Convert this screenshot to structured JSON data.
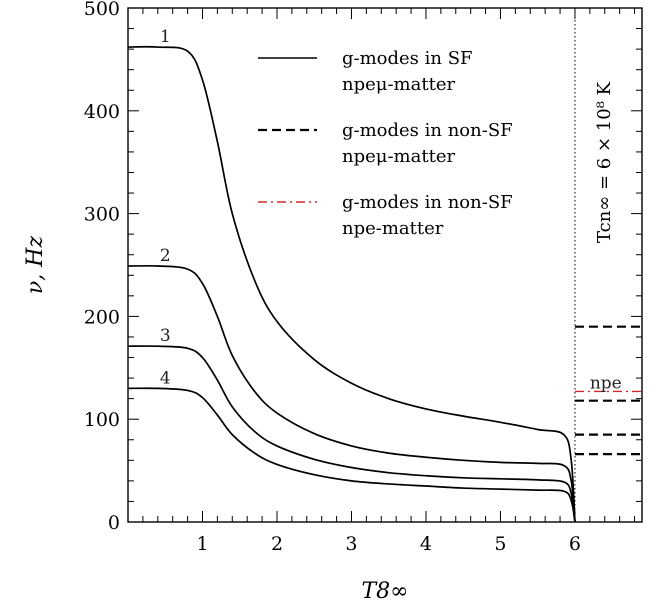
{
  "chart_data": {
    "type": "line",
    "xlabel": "T8∞",
    "ylabel": "ν, Hz",
    "xlim": [
      0,
      6.9
    ],
    "ylim": [
      0,
      500
    ],
    "x_ticks": [
      "1",
      "2",
      "3",
      "4",
      "5",
      "6"
    ],
    "y_ticks": [
      "0",
      "100",
      "200",
      "300",
      "400",
      "500"
    ],
    "vline": {
      "x": 6.0,
      "style": "dotted",
      "label": "Tcn∞ = 6 × 10⁸ K"
    },
    "series": [
      {
        "name": "1",
        "style": "solid",
        "color": "#000000",
        "x": [
          0.0,
          0.4,
          0.8,
          1.0,
          1.2,
          1.4,
          1.7,
          2.0,
          2.5,
          3.0,
          3.5,
          4.0,
          4.5,
          5.0,
          5.5,
          5.85,
          5.95,
          6.0
        ],
        "values": [
          462,
          462,
          458,
          430,
          370,
          300,
          235,
          195,
          158,
          135,
          120,
          110,
          103,
          97,
          90,
          85,
          60,
          0
        ]
      },
      {
        "name": "2",
        "style": "solid",
        "color": "#000000",
        "x": [
          0.0,
          0.4,
          0.8,
          1.0,
          1.2,
          1.4,
          1.7,
          2.0,
          2.5,
          3.0,
          3.5,
          4.0,
          4.5,
          5.0,
          5.5,
          5.85,
          5.95,
          6.0
        ],
        "values": [
          249,
          249,
          246,
          232,
          200,
          162,
          127,
          106,
          86,
          74,
          67,
          63,
          60,
          58,
          57,
          55,
          40,
          0
        ]
      },
      {
        "name": "3",
        "style": "solid",
        "color": "#000000",
        "x": [
          0.0,
          0.4,
          0.8,
          1.0,
          1.2,
          1.4,
          1.7,
          2.0,
          2.5,
          3.0,
          3.5,
          4.0,
          4.5,
          5.0,
          5.5,
          5.85,
          5.95,
          6.0
        ],
        "values": [
          171,
          171,
          169,
          160,
          138,
          112,
          88,
          74,
          61,
          53,
          48,
          45,
          43,
          42,
          41,
          39,
          28,
          0
        ]
      },
      {
        "name": "4",
        "style": "solid",
        "color": "#000000",
        "x": [
          0.0,
          0.4,
          0.8,
          1.0,
          1.2,
          1.4,
          1.7,
          2.0,
          2.5,
          3.0,
          3.5,
          4.0,
          4.5,
          5.0,
          5.5,
          5.85,
          5.95,
          6.0
        ],
        "values": [
          130,
          130,
          128,
          121,
          104,
          85,
          67,
          56,
          46,
          40,
          37,
          35,
          33,
          32,
          31,
          30,
          21,
          0
        ]
      }
    ],
    "segments": [
      {
        "style": "dashed",
        "color": "#000000",
        "x": [
          6.0,
          6.9
        ],
        "y": 190
      },
      {
        "style": "dashed",
        "color": "#000000",
        "x": [
          6.0,
          6.9
        ],
        "y": 118
      },
      {
        "style": "dashed",
        "color": "#000000",
        "x": [
          6.0,
          6.9
        ],
        "y": 85
      },
      {
        "style": "dashed",
        "color": "#000000",
        "x": [
          6.0,
          6.9
        ],
        "y": 66
      },
      {
        "style": "dashdot",
        "color": "#d62728",
        "x": [
          6.0,
          6.9
        ],
        "y": 127,
        "label": "npe"
      }
    ],
    "curve_labels": [
      {
        "text": "1",
        "x": 0.5,
        "y": 462
      },
      {
        "text": "2",
        "x": 0.5,
        "y": 249
      },
      {
        "text": "3",
        "x": 0.5,
        "y": 171
      },
      {
        "text": "4",
        "x": 0.5,
        "y": 130
      }
    ],
    "legend": {
      "placement": "top-center",
      "entries": [
        {
          "style": "solid",
          "color": "#000000",
          "line1": "g-modes in SF",
          "line2": "npeμ-matter"
        },
        {
          "style": "dashed",
          "color": "#000000",
          "line1": "g-modes in non-SF",
          "line2": "npeμ-matter"
        },
        {
          "style": "dashdot",
          "color": "#d62728",
          "line1": "g-modes in non-SF",
          "line2": "npe-matter"
        }
      ]
    }
  }
}
